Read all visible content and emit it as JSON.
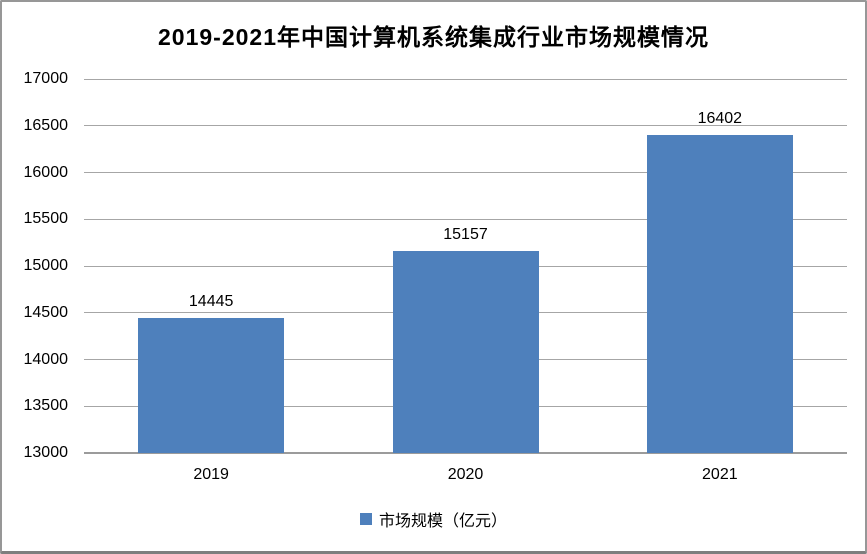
{
  "title": "2019-2021年中国计算机系统集成行业市场规模情况",
  "legend": {
    "label": "市场规模（亿元）",
    "marker": "blue-square"
  },
  "colors": {
    "bar": "#4E80BC",
    "gridline": "#A6A6A6",
    "axis_line": "#9B9B9B",
    "text": "#000000",
    "background": "#FFFFFF",
    "frame_border": "#8F8F8F"
  },
  "chart_data": {
    "type": "bar",
    "title": "2019-2021年中国计算机系统集成行业市场规模情况",
    "categories": [
      "2019",
      "2020",
      "2021"
    ],
    "series": [
      {
        "name": "市场规模（亿元）",
        "values": [
          14445,
          15157,
          16402
        ]
      }
    ],
    "data_labels": [
      "14445",
      "15157",
      "16402"
    ],
    "xlabel": "",
    "ylabel": "",
    "ylim": [
      13000,
      17000
    ],
    "ytick_interval": 500,
    "yticks": [
      13000,
      13500,
      14000,
      14500,
      15000,
      15500,
      16000,
      16500,
      17000
    ],
    "grid": true,
    "legend_position": "bottom"
  }
}
